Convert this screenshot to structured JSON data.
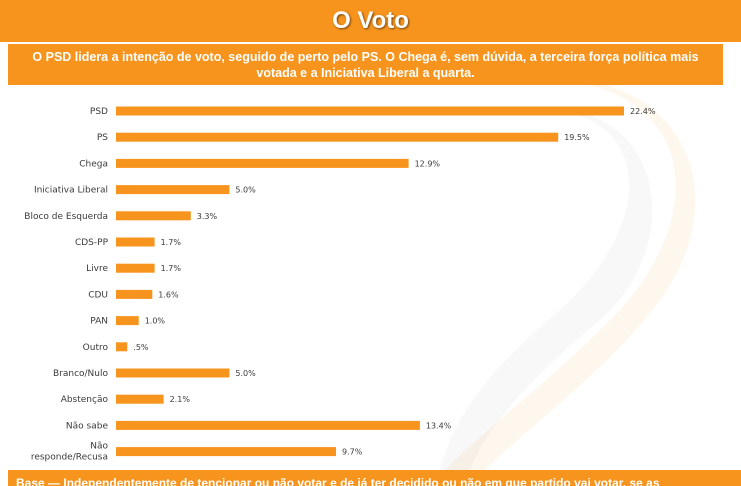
{
  "header": {
    "title": "O Voto",
    "subtitle": "O PSD lidera a intenção de voto, seguido de perto pelo PS. O Chega é, sem dúvida, a terceira força política mais votada e a Iniciativa Liberal a quarta."
  },
  "colors": {
    "accent": "#f7941d",
    "bar": "#f7941d"
  },
  "chart_data": {
    "type": "bar",
    "orientation": "horizontal",
    "categories": [
      "PSD",
      "PS",
      "Chega",
      "Iniciativa Liberal",
      "Bloco de Esquerda",
      "CDS-PP",
      "Livre",
      "CDU",
      "PAN",
      "Outro",
      "Branco/Nulo",
      "Abstenção",
      "Não sabe",
      "Não responde/Recusa"
    ],
    "values": [
      22.4,
      19.5,
      12.9,
      5.0,
      3.3,
      1.7,
      1.7,
      1.6,
      1.0,
      0.5,
      5.0,
      2.1,
      13.4,
      9.7
    ],
    "value_labels": [
      "22.4%",
      "19.5%",
      "12.9%",
      "5.0%",
      "3.3%",
      "1.7%",
      "1.7%",
      "1.6%",
      "1.0%",
      ".5%",
      "5.0%",
      "2.1%",
      "13.4%",
      "9.7%"
    ],
    "xlim": [
      0,
      22.4
    ],
    "grid": false,
    "legend": "none"
  },
  "footer": {
    "text": "Base — Independentemente de tencionar ou não votar e de já ter decidido ou não em que partido vai votar, se as"
  }
}
